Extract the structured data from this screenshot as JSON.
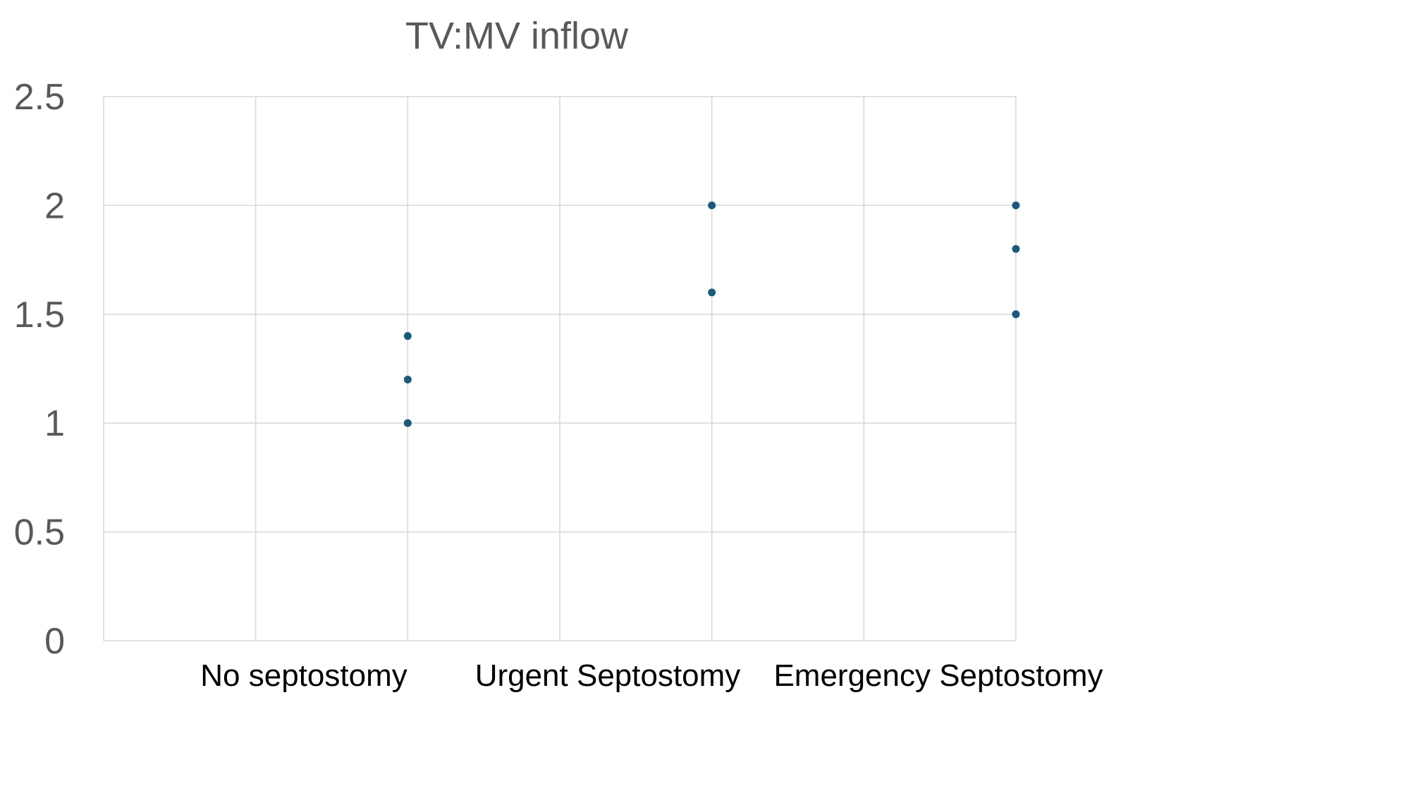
{
  "chart_data": {
    "type": "scatter",
    "title": "TV:MV inflow",
    "xlabel": "",
    "ylabel": "",
    "categories": [
      "No septostomy",
      "Urgent Septostomy",
      "Emergency Septostomy"
    ],
    "ylim": [
      0,
      2.5
    ],
    "yticks": [
      "0",
      "0.5",
      "1",
      "1.5",
      "2",
      "2.5"
    ],
    "grid": true,
    "legend": "none",
    "series": [
      {
        "points": [
          {
            "category": "No septostomy",
            "y": 1.0
          },
          {
            "category": "No septostomy",
            "y": 1.2
          },
          {
            "category": "No septostomy",
            "y": 1.4
          },
          {
            "category": "Urgent Septostomy",
            "y": 1.6
          },
          {
            "category": "Urgent Septostomy",
            "y": 2.0
          },
          {
            "category": "Emergency Septostomy",
            "y": 1.5
          },
          {
            "category": "Emergency Septostomy",
            "y": 1.8
          },
          {
            "category": "Emergency Septostomy",
            "y": 2.0
          }
        ]
      }
    ],
    "colors": {
      "marker": "#1b5a7a",
      "grid": "#d9d9d9",
      "tick_text": "#595959",
      "category_text": "#000000"
    }
  }
}
